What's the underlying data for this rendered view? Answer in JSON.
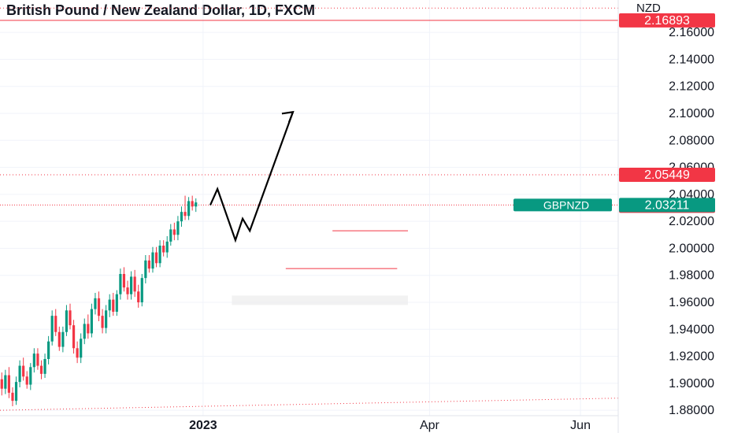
{
  "header": {
    "title": "British Pound / New Zealand Dollar, 1D, FXCM"
  },
  "chart_data": {
    "type": "candlestick",
    "symbol": "GBPNZD",
    "currency": "NZD",
    "y_ticks": [
      "2.16000",
      "2.14000",
      "2.12000",
      "2.10000",
      "2.08000",
      "2.06000",
      "2.04000",
      "2.02000",
      "2.00000",
      "1.98000",
      "1.96000",
      "1.94000",
      "1.92000",
      "1.90000",
      "1.88000"
    ],
    "ylim": [
      1.876,
      2.184
    ],
    "x_ticks": [
      {
        "label": "2023",
        "bold": true,
        "index": 16
      },
      {
        "label": "Apr",
        "bold": false,
        "index": 79
      },
      {
        "label": "Jun",
        "bold": false,
        "index": 121
      }
    ],
    "bar_count": 172,
    "price_labels": [
      {
        "text": "2.16893",
        "value": 2.16893,
        "color": "#f23645",
        "style": "solid"
      },
      {
        "text": "2.05449",
        "value": 2.05449,
        "color": "#f23645",
        "style": "dotted"
      },
      {
        "text": "2.03154",
        "value": 2.03154,
        "color": "#f23645",
        "style": "none"
      }
    ],
    "last_price": {
      "symbol": "GBPNZD",
      "text": "2.03211",
      "value": 2.03211,
      "color": "#089981"
    },
    "candles": [
      [
        1.945,
        1.95,
        1.933,
        1.936
      ],
      [
        1.936,
        1.941,
        1.927,
        1.931
      ],
      [
        1.931,
        1.946,
        1.928,
        1.942
      ],
      [
        1.942,
        1.948,
        1.935,
        1.938
      ],
      [
        1.938,
        1.942,
        1.922,
        1.925
      ],
      [
        1.925,
        1.939,
        1.921,
        1.935
      ],
      [
        1.935,
        1.947,
        1.931,
        1.943
      ],
      [
        1.943,
        1.946,
        1.93,
        1.933
      ],
      [
        1.933,
        1.941,
        1.926,
        1.938
      ],
      [
        1.938,
        1.944,
        1.929,
        1.931
      ],
      [
        1.931,
        1.935,
        1.918,
        1.922
      ],
      [
        1.922,
        1.933,
        1.916,
        1.928
      ],
      [
        1.928,
        1.936,
        1.922,
        1.926
      ],
      [
        1.926,
        1.931,
        1.91,
        1.914
      ],
      [
        1.914,
        1.925,
        1.908,
        1.921
      ],
      [
        1.921,
        1.93,
        1.915,
        1.918
      ],
      [
        1.918,
        1.924,
        1.904,
        1.908
      ],
      [
        1.908,
        1.919,
        1.903,
        1.915
      ],
      [
        1.915,
        1.926,
        1.91,
        1.922
      ],
      [
        1.922,
        1.927,
        1.911,
        1.914
      ],
      [
        1.914,
        1.918,
        1.897,
        1.902
      ],
      [
        1.902,
        1.912,
        1.894,
        1.908
      ],
      [
        1.908,
        1.916,
        1.9,
        1.904
      ],
      [
        1.904,
        1.909,
        1.893,
        1.897
      ],
      [
        1.897,
        1.913,
        1.894,
        1.91
      ],
      [
        1.91,
        1.921,
        1.905,
        1.918
      ],
      [
        1.918,
        1.924,
        1.909,
        1.912
      ],
      [
        1.912,
        1.917,
        1.902,
        1.906
      ],
      [
        1.906,
        1.92,
        1.903,
        1.916
      ],
      [
        1.916,
        1.925,
        1.911,
        1.914
      ],
      [
        1.914,
        1.921,
        1.903,
        1.909
      ],
      [
        1.909,
        1.923,
        1.906,
        1.919
      ],
      [
        1.919,
        1.941,
        1.916,
        1.936
      ],
      [
        1.936,
        1.941,
        1.922,
        1.925
      ],
      [
        1.925,
        1.929,
        1.906,
        1.91
      ],
      [
        1.91,
        1.914,
        1.894,
        1.898
      ],
      [
        1.898,
        1.91,
        1.893,
        1.906
      ],
      [
        1.906,
        1.921,
        1.901,
        1.917
      ],
      [
        1.917,
        1.922,
        1.908,
        1.911
      ],
      [
        1.911,
        1.916,
        1.899,
        1.903
      ],
      [
        1.903,
        1.908,
        1.891,
        1.896
      ],
      [
        1.896,
        1.91,
        1.892,
        1.906
      ],
      [
        1.906,
        1.912,
        1.889,
        1.893
      ],
      [
        1.893,
        1.897,
        1.883,
        1.887
      ],
      [
        1.887,
        1.905,
        1.884,
        1.901
      ],
      [
        1.901,
        1.917,
        1.897,
        1.913
      ],
      [
        1.913,
        1.919,
        1.902,
        1.905
      ],
      [
        1.905,
        1.909,
        1.896,
        1.899
      ],
      [
        1.899,
        1.915,
        1.895,
        1.912
      ],
      [
        1.912,
        1.926,
        1.908,
        1.922
      ],
      [
        1.922,
        1.926,
        1.91,
        1.913
      ],
      [
        1.913,
        1.917,
        1.903,
        1.907
      ],
      [
        1.907,
        1.922,
        1.904,
        1.918
      ],
      [
        1.918,
        1.935,
        1.914,
        1.931
      ],
      [
        1.931,
        1.954,
        1.928,
        1.95
      ],
      [
        1.95,
        1.955,
        1.935,
        1.938
      ],
      [
        1.938,
        1.942,
        1.924,
        1.927
      ],
      [
        1.927,
        1.942,
        1.923,
        1.938
      ],
      [
        1.938,
        1.958,
        1.935,
        1.954
      ],
      [
        1.954,
        1.959,
        1.94,
        1.943
      ],
      [
        1.943,
        1.947,
        1.922,
        1.926
      ],
      [
        1.926,
        1.931,
        1.915,
        1.919
      ],
      [
        1.919,
        1.937,
        1.915,
        1.933
      ],
      [
        1.933,
        1.948,
        1.929,
        1.944
      ],
      [
        1.944,
        1.951,
        1.933,
        1.937
      ],
      [
        1.937,
        1.959,
        1.934,
        1.955
      ],
      [
        1.955,
        1.967,
        1.951,
        1.963
      ],
      [
        1.963,
        1.968,
        1.946,
        1.95
      ],
      [
        1.95,
        1.955,
        1.937,
        1.941
      ],
      [
        1.941,
        1.958,
        1.937,
        1.954
      ],
      [
        1.954,
        1.966,
        1.949,
        1.962
      ],
      [
        1.962,
        1.967,
        1.95,
        1.953
      ],
      [
        1.953,
        1.969,
        1.95,
        1.966
      ],
      [
        1.966,
        1.985,
        1.962,
        1.981
      ],
      [
        1.981,
        1.986,
        1.968,
        1.971
      ],
      [
        1.971,
        1.976,
        1.962,
        1.966
      ],
      [
        1.966,
        1.983,
        1.962,
        1.979
      ],
      [
        1.979,
        1.984,
        1.964,
        1.968
      ],
      [
        1.968,
        1.973,
        1.956,
        1.96
      ],
      [
        1.96,
        1.981,
        1.957,
        1.978
      ],
      [
        1.978,
        1.995,
        1.974,
        1.991
      ],
      [
        1.991,
        1.995,
        1.982,
        1.985
      ],
      [
        1.985,
        2.001,
        1.982,
        1.997
      ],
      [
        1.997,
        2.001,
        1.986,
        1.989
      ],
      [
        1.989,
        2.006,
        1.986,
        2.002
      ],
      [
        2.002,
        2.006,
        1.994,
        1.997
      ],
      [
        1.997,
        2.009,
        1.993,
        2.005
      ],
      [
        2.005,
        2.018,
        2.002,
        2.014
      ],
      [
        2.014,
        2.019,
        2.006,
        2.01
      ],
      [
        2.01,
        2.024,
        2.006,
        2.02
      ],
      [
        2.02,
        2.031,
        2.016,
        2.027
      ],
      [
        2.027,
        2.039,
        2.021,
        2.024
      ],
      [
        2.024,
        2.038,
        2.021,
        2.035
      ],
      [
        2.035,
        2.039,
        2.028,
        2.031
      ],
      [
        2.031,
        2.037,
        2.027,
        2.034
      ]
    ],
    "drawings": {
      "zigzag_path": [
        [
          98,
          2.032
        ],
        [
          100,
          2.044
        ],
        [
          105,
          2.006
        ],
        [
          107,
          2.022
        ],
        [
          109,
          2.013
        ],
        [
          121,
          2.101
        ]
      ],
      "level_lines": [
        {
          "from": 79,
          "to": 110,
          "value": 1.985
        },
        {
          "from": 92,
          "to": 113,
          "value": 2.013
        }
      ],
      "zone": {
        "from": 64,
        "to": 113,
        "top": 1.965,
        "bottom": 1.958
      },
      "trendline": {
        "from": [
          0,
          1.88
        ],
        "to": [
          150,
          1.889
        ]
      }
    }
  }
}
